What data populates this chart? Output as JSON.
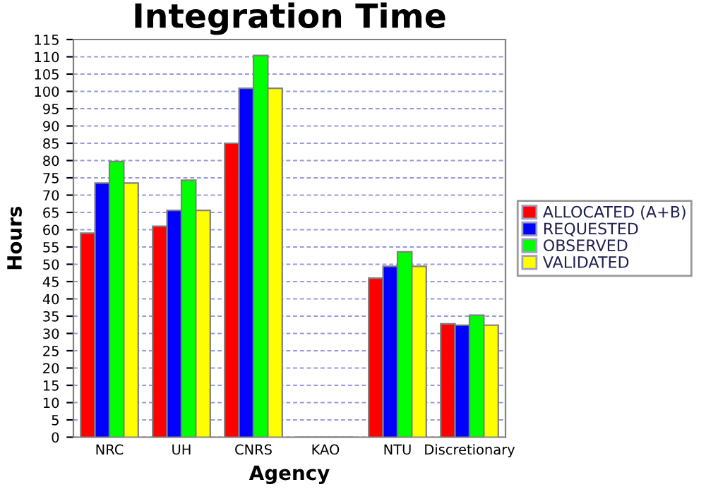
{
  "chart_data": {
    "type": "bar",
    "title": "Integration Time",
    "xlabel": "Agency",
    "ylabel": "Hours",
    "categories": [
      "NRC",
      "UH",
      "CNRS",
      "KAO",
      "NTU",
      "Discretionary"
    ],
    "series": [
      {
        "name": "ALLOCATED (A+B)",
        "color": "#ff0000",
        "values": [
          59,
          61,
          85,
          0,
          46,
          32.8
        ]
      },
      {
        "name": "REQUESTED",
        "color": "#0000ff",
        "values": [
          73.5,
          65.6,
          100.9,
          0,
          49.4,
          32.4
        ]
      },
      {
        "name": "OBSERVED",
        "color": "#00ff00",
        "values": [
          79.7,
          74.3,
          110.4,
          0,
          53.6,
          35.3
        ]
      },
      {
        "name": "VALIDATED",
        "color": "#ffff00",
        "values": [
          73.5,
          65.6,
          100.9,
          0,
          49.4,
          32.4
        ]
      }
    ],
    "ylim": [
      0,
      115
    ],
    "yticks": [
      0,
      5,
      10,
      15,
      20,
      25,
      30,
      35,
      40,
      45,
      50,
      55,
      60,
      65,
      70,
      75,
      80,
      85,
      90,
      95,
      100,
      105,
      110,
      115
    ],
    "grid": "y",
    "legend": "right"
  }
}
